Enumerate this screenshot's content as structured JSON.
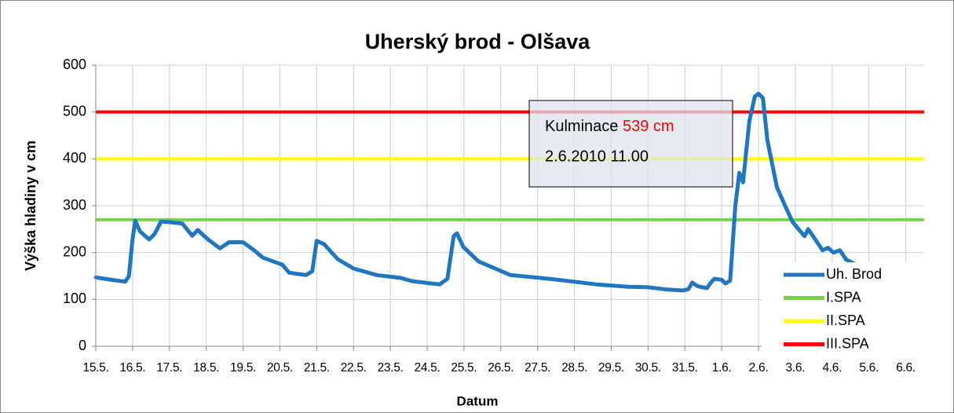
{
  "chart_data": {
    "type": "line",
    "title": "Uherský brod - Olšava",
    "x_label": "Datum",
    "y_label": "Výška hladiny v cm",
    "xlim": [
      0,
      22.5
    ],
    "xticks": [
      {
        "value": 0,
        "label": "15.5."
      },
      {
        "value": 1,
        "label": "16.5."
      },
      {
        "value": 2,
        "label": "17.5."
      },
      {
        "value": 3,
        "label": "18.5."
      },
      {
        "value": 4,
        "label": "19.5."
      },
      {
        "value": 5,
        "label": "20.5."
      },
      {
        "value": 6,
        "label": "21.5."
      },
      {
        "value": 7,
        "label": "22.5."
      },
      {
        "value": 8,
        "label": "23.5."
      },
      {
        "value": 9,
        "label": "24.5."
      },
      {
        "value": 10,
        "label": "25.5."
      },
      {
        "value": 11,
        "label": "26.5."
      },
      {
        "value": 12,
        "label": "27.5."
      },
      {
        "value": 13,
        "label": "28.5."
      },
      {
        "value": 14,
        "label": "29.5."
      },
      {
        "value": 15,
        "label": "30.5."
      },
      {
        "value": 16,
        "label": "31.5."
      },
      {
        "value": 17,
        "label": "1.6."
      },
      {
        "value": 18,
        "label": "2.6."
      },
      {
        "value": 19,
        "label": "3.6."
      },
      {
        "value": 20,
        "label": "4.6."
      },
      {
        "value": 21,
        "label": "5.6."
      },
      {
        "value": 22,
        "label": "6.6."
      }
    ],
    "ylim": [
      0,
      600
    ],
    "yticks": [
      0,
      100,
      200,
      300,
      400,
      500,
      600
    ],
    "grid": true,
    "legend": "bottom-right",
    "x": [
      0,
      0.5,
      0.8,
      0.9,
      1.0,
      1.07,
      1.2,
      1.45,
      1.6,
      1.77,
      2.0,
      2.35,
      2.62,
      2.77,
      3.05,
      3.37,
      3.62,
      4.0,
      4.33,
      4.54,
      5.07,
      5.25,
      5.71,
      5.88,
      6.0,
      6.2,
      6.57,
      7.0,
      7.63,
      8.27,
      8.6,
      9.34,
      9.55,
      9.72,
      9.81,
      9.98,
      10.4,
      11.26,
      12.32,
      13.6,
      14.46,
      15.0,
      15.52,
      15.95,
      16.1,
      16.2,
      16.35,
      16.6,
      16.7,
      16.8,
      17.0,
      17.1,
      17.23,
      17.37,
      17.48,
      17.58,
      17.75,
      17.9,
      18.0,
      18.12,
      18.24,
      18.5,
      18.72,
      18.93,
      19.14,
      19.25,
      19.35,
      19.57,
      19.74,
      19.89,
      20.04,
      20.21,
      20.38,
      20.64
    ],
    "series": [
      {
        "name": "Uh. Brod",
        "color": "#1f77c4",
        "values": [
          147,
          141,
          138,
          150,
          230,
          268,
          245,
          228,
          240,
          266,
          265,
          262,
          236,
          248,
          228,
          209,
          222,
          222,
          203,
          189,
          174,
          157,
          152,
          160,
          225,
          218,
          186,
          166,
          152,
          146,
          139,
          132,
          144,
          235,
          241,
          212,
          181,
          152,
          144,
          132,
          127,
          126,
          121,
          119,
          122,
          136,
          128,
          124,
          135,
          144,
          142,
          134,
          140,
          300,
          370,
          350,
          480,
          533,
          539,
          530,
          440,
          340,
          300,
          265,
          245,
          235,
          250,
          225,
          205,
          210,
          200,
          205,
          185,
          175
        ]
      },
      {
        "name": "I.SPA",
        "color": "#77d44a",
        "level": 270
      },
      {
        "name": "II.SPA",
        "color": "#ffff00",
        "level": 400
      },
      {
        "name": "III.SPA",
        "color": "#ff0000",
        "level": 500
      }
    ],
    "annotation": {
      "text": "Kulminace",
      "value_text": "539 cm",
      "value_color": "#ff0000",
      "line2": "2.6.2010 11.00"
    }
  }
}
